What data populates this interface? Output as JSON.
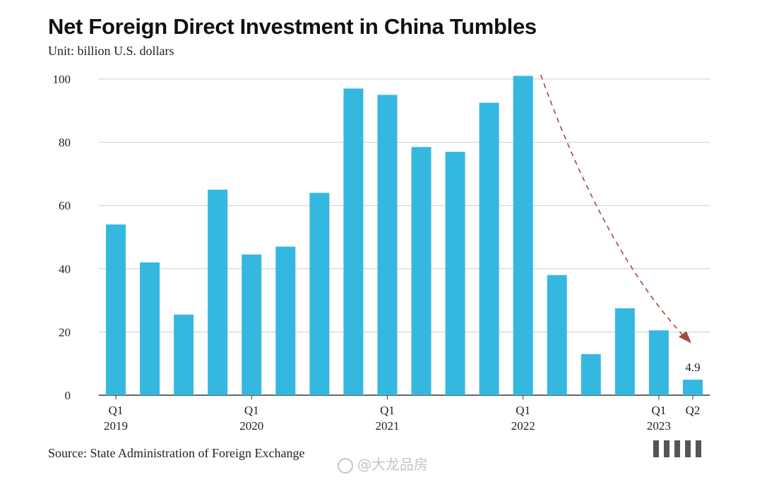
{
  "title": "Net Foreign Direct Investment in China Tumbles",
  "subtitle": "Unit: billion U.S. dollars",
  "source": "Source: State Administration of Foreign Exchange",
  "watermark": "@大龙品房",
  "colors": {
    "bar": "#35b8e0",
    "arrow": "#a5493a",
    "grid": "#cccccc",
    "axis": "#333333"
  },
  "chart_data": {
    "type": "bar",
    "title": "Net Foreign Direct Investment in China Tumbles",
    "ylabel": "Unit: billion U.S. dollars",
    "ylim": [
      0,
      100
    ],
    "yticks": [
      0,
      20,
      40,
      60,
      80,
      100
    ],
    "grid": true,
    "categories": [
      "Q1 2019",
      "Q2 2019",
      "Q3 2019",
      "Q4 2019",
      "Q1 2020",
      "Q2 2020",
      "Q3 2020",
      "Q4 2020",
      "Q1 2021",
      "Q2 2021",
      "Q3 2021",
      "Q4 2021",
      "Q1 2022",
      "Q2 2022",
      "Q3 2022",
      "Q4 2022",
      "Q1 2023",
      "Q2 2023"
    ],
    "values": [
      54,
      42,
      25.5,
      65,
      44.5,
      47,
      64,
      97,
      95,
      78.5,
      77,
      92.5,
      101,
      38,
      13,
      27.5,
      20.5,
      4.9
    ],
    "x_tick_labels": [
      {
        "index": 0,
        "quarter": "Q1",
        "year": "2019"
      },
      {
        "index": 4,
        "quarter": "Q1",
        "year": "2020"
      },
      {
        "index": 8,
        "quarter": "Q1",
        "year": "2021"
      },
      {
        "index": 12,
        "quarter": "Q1",
        "year": "2022"
      },
      {
        "index": 16,
        "quarter": "Q1",
        "year": "2023"
      },
      {
        "index": 17,
        "quarter": "Q2",
        "year": ""
      }
    ],
    "data_labels": [
      {
        "index": 17,
        "text": "4.9"
      }
    ],
    "annotation": "dashed arrow from the Q1 2022 peak down toward Q2 2023"
  }
}
